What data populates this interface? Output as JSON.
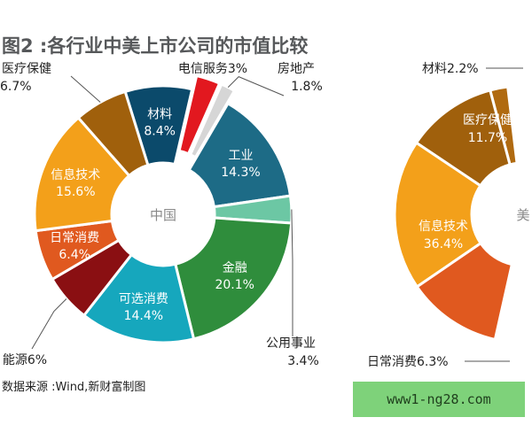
{
  "title": "图2 :各行业中美上市公司的市值比较",
  "source": "数据来源 :Wind,新财富制图",
  "watermark": "www1-ng28.com",
  "chart_data": [
    {
      "type": "pie",
      "donut": true,
      "center_label": "中国",
      "legend": "none",
      "slices": [
        {
          "label": "材料",
          "value": 8.4,
          "value_text": "8.4%",
          "color": "#0b4a6b",
          "exploded": false
        },
        {
          "label": "电信服务",
          "value": 3.0,
          "value_text": "3%",
          "color": "#e2181f",
          "exploded": true,
          "label_inline": "电信服务3%"
        },
        {
          "label": "房地产",
          "value": 1.8,
          "value_text": "1.8%",
          "color": "#d6d6d6",
          "exploded": true
        },
        {
          "label": "工业",
          "value": 14.3,
          "value_text": "14.3%",
          "color": "#1d6b86",
          "exploded": false
        },
        {
          "label": "公用事业",
          "value": 3.4,
          "value_text": "3.4%",
          "color": "#6cc7a4",
          "exploded": false
        },
        {
          "label": "金融",
          "value": 20.1,
          "value_text": "20.1%",
          "color": "#2f8d3c",
          "exploded": false
        },
        {
          "label": "可选消费",
          "value": 14.4,
          "value_text": "14.4%",
          "color": "#16a7bd",
          "exploded": false
        },
        {
          "label": "能源",
          "value": 6.0,
          "value_text": "6%",
          "color": "#8a0f12",
          "exploded": false,
          "label_inline": "能源6%"
        },
        {
          "label": "日常消费",
          "value": 6.4,
          "value_text": "6.4%",
          "color": "#e0591f",
          "exploded": false
        },
        {
          "label": "信息技术",
          "value": 15.6,
          "value_text": "15.6%",
          "color": "#f3a01a",
          "exploded": false
        },
        {
          "label": "医疗保健",
          "value": 6.7,
          "value_text": "6.7%",
          "color": "#a0600c",
          "exploded": false
        }
      ]
    },
    {
      "type": "pie",
      "donut": true,
      "center_label": "美",
      "partially_visible": true,
      "legend": "none",
      "slices": [
        {
          "label": "材料",
          "value": 2.2,
          "value_text": "2.2%",
          "color": "#b06a10",
          "label_inline": "材料2.2%"
        },
        {
          "label": "医疗保健",
          "value": 11.7,
          "value_text": "11.7%",
          "color": "#a0600c"
        },
        {
          "label": "信息技术",
          "value": 36.4,
          "value_text": "36.4%",
          "color": "#f3a01a"
        },
        {
          "label": "日常消费",
          "value": 6.3,
          "value_text": "6.3%",
          "color": "#e0591f",
          "label_inline": "日常消费6.3%"
        }
      ]
    }
  ]
}
